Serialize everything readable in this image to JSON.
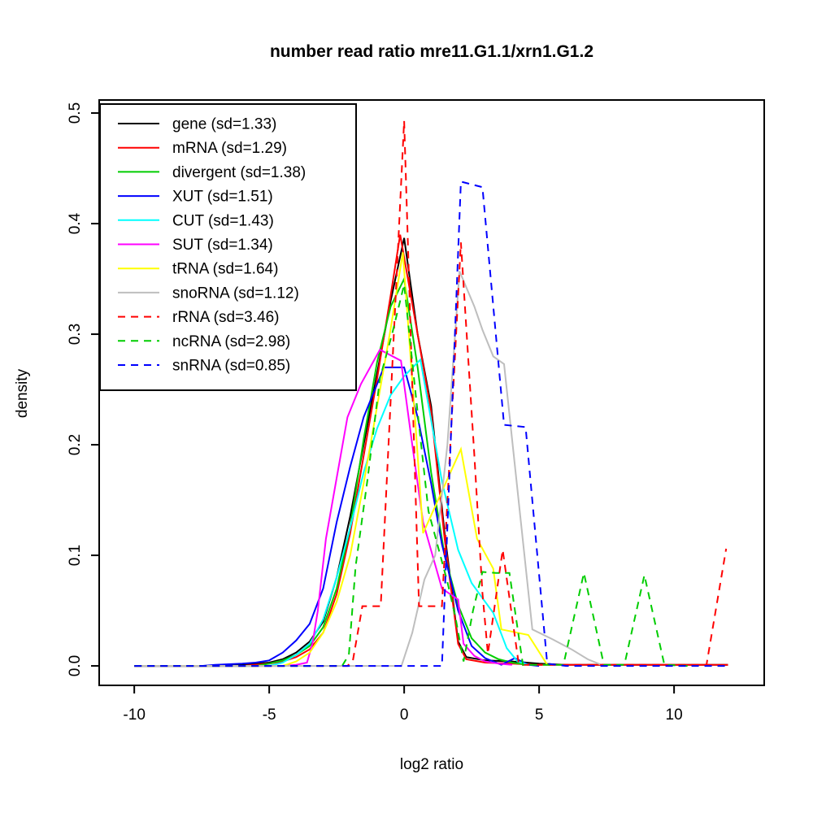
{
  "page": {
    "title": "number read ratio mre11.G1.1/xrn1.G1.2",
    "xlabel": "log2 ratio",
    "ylabel": "density"
  },
  "chart_data": {
    "type": "line",
    "title": "number read ratio mre11.G1.1/xrn1.G1.2",
    "xlabel": "log2 ratio",
    "ylabel": "density",
    "grid": false,
    "legend_position": "top-left",
    "xlim": [
      -11.3,
      13.34
    ],
    "ylim": [
      -0.0176,
      0.5118
    ],
    "x_ticks": [
      -10,
      -5,
      0,
      5,
      10
    ],
    "x_tick_labels": [
      "-10",
      "-5",
      "0",
      "5",
      "10"
    ],
    "y_ticks": [
      0,
      0.1,
      0.2,
      0.3,
      0.4,
      0.5
    ],
    "y_tick_labels": [
      "0.0",
      "0.1",
      "0.2",
      "0.3",
      "0.4",
      "0.5"
    ],
    "series": [
      {
        "name": "gene",
        "legend_label": "gene (sd=1.33)",
        "sd": 1.33,
        "color": "#000000",
        "linestyle": "solid",
        "points": [
          [
            -10,
            0
          ],
          [
            -7,
            0
          ],
          [
            -6,
            0.001
          ],
          [
            -5,
            0.003
          ],
          [
            -4.5,
            0.006
          ],
          [
            -4,
            0.012
          ],
          [
            -3.5,
            0.022
          ],
          [
            -3,
            0.04
          ],
          [
            -2.5,
            0.08
          ],
          [
            -2,
            0.135
          ],
          [
            -1.5,
            0.2
          ],
          [
            -1,
            0.265
          ],
          [
            -0.5,
            0.33
          ],
          [
            0,
            0.387
          ],
          [
            0.5,
            0.3
          ],
          [
            1,
            0.235
          ],
          [
            1.5,
            0.12
          ],
          [
            2,
            0.022
          ],
          [
            2.3,
            0.008
          ],
          [
            3,
            0.005
          ],
          [
            4,
            0.004
          ],
          [
            5,
            0.002
          ],
          [
            6,
            0.001
          ],
          [
            8,
            0.001
          ],
          [
            10,
            0.001
          ],
          [
            12,
            0.001
          ]
        ]
      },
      {
        "name": "mRNA",
        "legend_label": "mRNA (sd=1.29)",
        "sd": 1.29,
        "color": "#FF0000",
        "linestyle": "solid",
        "points": [
          [
            -10,
            0
          ],
          [
            -6,
            0
          ],
          [
            -5,
            0.002
          ],
          [
            -4.5,
            0.004
          ],
          [
            -4,
            0.008
          ],
          [
            -3.5,
            0.015
          ],
          [
            -3,
            0.03
          ],
          [
            -2.5,
            0.065
          ],
          [
            -2,
            0.12
          ],
          [
            -1.5,
            0.19
          ],
          [
            -1,
            0.26
          ],
          [
            -0.5,
            0.335
          ],
          [
            -0.15,
            0.39
          ],
          [
            0.5,
            0.3
          ],
          [
            1,
            0.23
          ],
          [
            1.5,
            0.115
          ],
          [
            2,
            0.02
          ],
          [
            2.3,
            0.006
          ],
          [
            3,
            0.003
          ],
          [
            4,
            0.002
          ],
          [
            5,
            0.001
          ],
          [
            8,
            0.001
          ],
          [
            12,
            0.001
          ]
        ]
      },
      {
        "name": "divergent",
        "legend_label": "divergent (sd=1.38)",
        "sd": 1.38,
        "color": "#00CD00",
        "linestyle": "solid",
        "points": [
          [
            -10,
            0
          ],
          [
            -5.5,
            0
          ],
          [
            -5,
            0.002
          ],
          [
            -4.5,
            0.005
          ],
          [
            -4,
            0.01
          ],
          [
            -3.5,
            0.018
          ],
          [
            -3,
            0.035
          ],
          [
            -2.5,
            0.07
          ],
          [
            -2,
            0.125
          ],
          [
            -1.5,
            0.205
          ],
          [
            -1,
            0.275
          ],
          [
            -0.5,
            0.325
          ],
          [
            0,
            0.35
          ],
          [
            0.5,
            0.27
          ],
          [
            1,
            0.175
          ],
          [
            1.5,
            0.1
          ],
          [
            2,
            0.055
          ],
          [
            2.5,
            0.025
          ],
          [
            3,
            0.012
          ],
          [
            3.5,
            0.006
          ],
          [
            4,
            0.003
          ],
          [
            4.6,
            0.001
          ]
        ]
      },
      {
        "name": "XUT",
        "legend_label": "XUT (sd=1.51)",
        "sd": 1.51,
        "color": "#0000FF",
        "linestyle": "solid",
        "points": [
          [
            -10,
            0
          ],
          [
            -7.5,
            0
          ],
          [
            -7,
            0.001
          ],
          [
            -6,
            0.002
          ],
          [
            -5.5,
            0.003
          ],
          [
            -5,
            0.005
          ],
          [
            -4.5,
            0.012
          ],
          [
            -4,
            0.023
          ],
          [
            -3.5,
            0.038
          ],
          [
            -3,
            0.07
          ],
          [
            -2.5,
            0.13
          ],
          [
            -2,
            0.18
          ],
          [
            -1.5,
            0.225
          ],
          [
            -1,
            0.255
          ],
          [
            -0.75,
            0.27
          ],
          [
            0,
            0.27
          ],
          [
            0.5,
            0.225
          ],
          [
            1,
            0.165
          ],
          [
            1.4,
            0.11
          ],
          [
            2,
            0.05
          ],
          [
            2.5,
            0.018
          ],
          [
            3,
            0.007
          ],
          [
            3.6,
            0.001
          ],
          [
            4.1,
            0.007
          ],
          [
            4.6,
            0.001
          ],
          [
            5,
            0
          ]
        ]
      },
      {
        "name": "CUT",
        "legend_label": "CUT (sd=1.43)",
        "sd": 1.43,
        "color": "#00FFFF",
        "linestyle": "solid",
        "points": [
          [
            -10,
            0
          ],
          [
            -5,
            0
          ],
          [
            -4.5,
            0.003
          ],
          [
            -4,
            0.01
          ],
          [
            -3.5,
            0.02
          ],
          [
            -3,
            0.042
          ],
          [
            -2.5,
            0.08
          ],
          [
            -2,
            0.125
          ],
          [
            -1.5,
            0.175
          ],
          [
            -1,
            0.215
          ],
          [
            -0.5,
            0.245
          ],
          [
            0,
            0.262
          ],
          [
            0.6,
            0.277
          ],
          [
            1.4,
            0.167
          ],
          [
            2,
            0.105
          ],
          [
            2.5,
            0.075
          ],
          [
            2.85,
            0.063
          ],
          [
            3.3,
            0.048
          ],
          [
            3.8,
            0.016
          ],
          [
            4.2,
            0.004
          ],
          [
            4.6,
            0.001
          ]
        ]
      },
      {
        "name": "SUT",
        "legend_label": "SUT (sd=1.34)",
        "sd": 1.34,
        "color": "#FF00FF",
        "linestyle": "solid",
        "points": [
          [
            -10,
            0
          ],
          [
            -4.5,
            0
          ],
          [
            -4,
            0.001
          ],
          [
            -3.6,
            0.003
          ],
          [
            -3.4,
            0.02
          ],
          [
            -3.2,
            0.05
          ],
          [
            -2.9,
            0.115
          ],
          [
            -2.5,
            0.17
          ],
          [
            -2.1,
            0.225
          ],
          [
            -1.6,
            0.255
          ],
          [
            -0.9,
            0.286
          ],
          [
            -0.12,
            0.276
          ],
          [
            0.3,
            0.2
          ],
          [
            0.7,
            0.13
          ],
          [
            1.4,
            0.07
          ],
          [
            2,
            0.06
          ],
          [
            2.2,
            0.02
          ],
          [
            2.6,
            0.009
          ],
          [
            3,
            0.004
          ],
          [
            3.5,
            0.002
          ],
          [
            4,
            0.001
          ]
        ]
      },
      {
        "name": "tRNA",
        "legend_label": "tRNA (sd=1.64)",
        "sd": 1.64,
        "color": "#FFFF00",
        "linestyle": "solid",
        "points": [
          [
            -10,
            0
          ],
          [
            -4.5,
            0
          ],
          [
            -4,
            0.004
          ],
          [
            -3.5,
            0.012
          ],
          [
            -3,
            0.03
          ],
          [
            -2.5,
            0.058
          ],
          [
            -2,
            0.1
          ],
          [
            -1.5,
            0.165
          ],
          [
            -1,
            0.235
          ],
          [
            -0.5,
            0.305
          ],
          [
            -0.05,
            0.374
          ],
          [
            0.4,
            0.225
          ],
          [
            0.7,
            0.12
          ],
          [
            2.1,
            0.196
          ],
          [
            2.7,
            0.115
          ],
          [
            3.3,
            0.088
          ],
          [
            3.6,
            0.033
          ],
          [
            4.6,
            0.028
          ],
          [
            5.3,
            0.001
          ]
        ]
      },
      {
        "name": "snoRNA",
        "legend_label": "snoRNA (sd=1.12)",
        "sd": 1.12,
        "color": "#BEBEBE",
        "linestyle": "solid",
        "points": [
          [
            -10,
            0
          ],
          [
            -0.1,
            0
          ],
          [
            0.3,
            0.03
          ],
          [
            0.75,
            0.078
          ],
          [
            1.15,
            0.1
          ],
          [
            1.6,
            0.2
          ],
          [
            2.05,
            0.357
          ],
          [
            2.6,
            0.325
          ],
          [
            2.9,
            0.304
          ],
          [
            3.3,
            0.28
          ],
          [
            3.7,
            0.273
          ],
          [
            4.75,
            0.033
          ],
          [
            5.5,
            0.024
          ],
          [
            6.2,
            0.015
          ],
          [
            6.8,
            0.006
          ],
          [
            7.3,
            0.001
          ]
        ]
      },
      {
        "name": "rRNA",
        "legend_label": "rRNA (sd=3.46)",
        "sd": 3.46,
        "color": "#FF0000",
        "linestyle": "dashed",
        "points": [
          [
            -10,
            0
          ],
          [
            -2.1,
            0
          ],
          [
            -1.9,
            0.005
          ],
          [
            -1.55,
            0.054
          ],
          [
            -0.87,
            0.054
          ],
          [
            0,
            0.493
          ],
          [
            0.55,
            0.054
          ],
          [
            1.4,
            0.054
          ],
          [
            2.1,
            0.383
          ],
          [
            2.6,
            0.19
          ],
          [
            2.9,
            0.066
          ],
          [
            3.1,
            0.011
          ],
          [
            3.65,
            0.105
          ],
          [
            4.25,
            0.001
          ],
          [
            6,
            0.001
          ],
          [
            9,
            0.001
          ],
          [
            11.2,
            0.001
          ],
          [
            11.93,
            0.106
          ]
        ]
      },
      {
        "name": "ncRNA",
        "legend_label": "ncRNA (sd=2.98)",
        "sd": 2.98,
        "color": "#00CD00",
        "linestyle": "dashed",
        "points": [
          [
            -10,
            0
          ],
          [
            -2.3,
            0
          ],
          [
            -2.05,
            0.01
          ],
          [
            -1.8,
            0.09
          ],
          [
            -1.35,
            0.17
          ],
          [
            -0.9,
            0.26
          ],
          [
            -0.45,
            0.3
          ],
          [
            0,
            0.345
          ],
          [
            0.45,
            0.24
          ],
          [
            0.9,
            0.14
          ],
          [
            1.6,
            0.076
          ],
          [
            1.9,
            0.044
          ],
          [
            2.2,
            0.004
          ],
          [
            2.55,
            0.05
          ],
          [
            2.9,
            0.085
          ],
          [
            3.4,
            0.084
          ],
          [
            3.9,
            0.084
          ],
          [
            4.4,
            0.001
          ],
          [
            5.9,
            0.001
          ],
          [
            6.66,
            0.084
          ],
          [
            7.4,
            0.001
          ],
          [
            8.16,
            0.001
          ],
          [
            8.9,
            0.082
          ],
          [
            9.64,
            0.001
          ],
          [
            10.5,
            0
          ]
        ]
      },
      {
        "name": "snRNA",
        "legend_label": "snRNA (sd=0.85)",
        "sd": 0.85,
        "color": "#0000FF",
        "linestyle": "dashed",
        "points": [
          [
            -10,
            0
          ],
          [
            1.4,
            0
          ],
          [
            2.1,
            0.438
          ],
          [
            2.9,
            0.433
          ],
          [
            3.7,
            0.218
          ],
          [
            4.5,
            0.216
          ],
          [
            5.3,
            0.002
          ],
          [
            6,
            0
          ],
          [
            12,
            0
          ]
        ]
      }
    ]
  }
}
